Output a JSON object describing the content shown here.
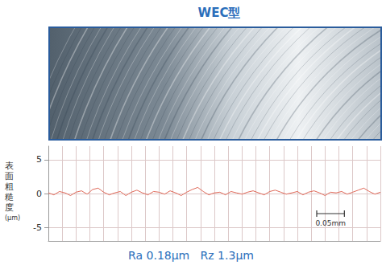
{
  "chart_data": {
    "type": "line",
    "title": "WEC型",
    "y_label": "表面粗糙度 (μm)",
    "x": [
      0,
      0.01,
      0.02,
      0.03,
      0.04,
      0.05,
      0.06,
      0.07,
      0.08,
      0.09,
      0.1,
      0.11,
      0.12,
      0.13,
      0.14,
      0.15,
      0.16,
      0.17,
      0.18,
      0.19,
      0.2,
      0.21,
      0.22,
      0.23,
      0.24,
      0.25,
      0.26,
      0.27,
      0.28,
      0.29,
      0.3,
      0.31,
      0.32,
      0.33,
      0.34,
      0.35,
      0.36,
      0.37,
      0.38,
      0.39,
      0.4,
      0.41,
      0.42,
      0.43,
      0.44,
      0.45,
      0.46,
      0.47,
      0.48,
      0.49,
      0.5,
      0.51,
      0.52,
      0.53,
      0.54,
      0.55,
      0.56,
      0.57,
      0.58,
      0.59,
      0.6
    ],
    "values": [
      0.1,
      -0.2,
      0.3,
      0.1,
      -0.3,
      0.2,
      0.4,
      -0.1,
      0.6,
      0.8,
      0.2,
      -0.2,
      0.1,
      0.3,
      -0.3,
      0.2,
      0.5,
      0.1,
      -0.2,
      0.3,
      0.2,
      -0.1,
      0.4,
      0.1,
      -0.3,
      0.2,
      0.6,
      0.9,
      0.3,
      -0.2,
      0.1,
      0.2,
      -0.2,
      0.3,
      0.1,
      -0.1,
      0.2,
      0.4,
      0.1,
      -0.2,
      0.3,
      0.5,
      0.2,
      -0.1,
      0.1,
      0.3,
      -0.2,
      0.2,
      0.4,
      0.1,
      -0.3,
      0.2,
      0.1,
      0.3,
      -0.1,
      0.2,
      0.5,
      0.8,
      0.3,
      -0.1,
      0.2
    ],
    "color": "#e06a5a",
    "xlim": [
      0,
      0.6
    ],
    "xticks": [
      0,
      0.025,
      0.05,
      0.075,
      0.1,
      0.125,
      0.15,
      0.175,
      0.2,
      0.225,
      0.25,
      0.275,
      0.3,
      0.325,
      0.35,
      0.375,
      0.4,
      0.425,
      0.45,
      0.475,
      0.5,
      0.525,
      0.55,
      0.575,
      0.6
    ],
    "ylim": [
      -7,
      7
    ],
    "yticks": [
      -5,
      0,
      5
    ],
    "grid": true,
    "tick_labels": "y",
    "scale_bar": {
      "label": "0.05mm",
      "length": 0.05
    },
    "annotations": [
      "Ra 0.18μm   Rz 1.3μm"
    ]
  }
}
